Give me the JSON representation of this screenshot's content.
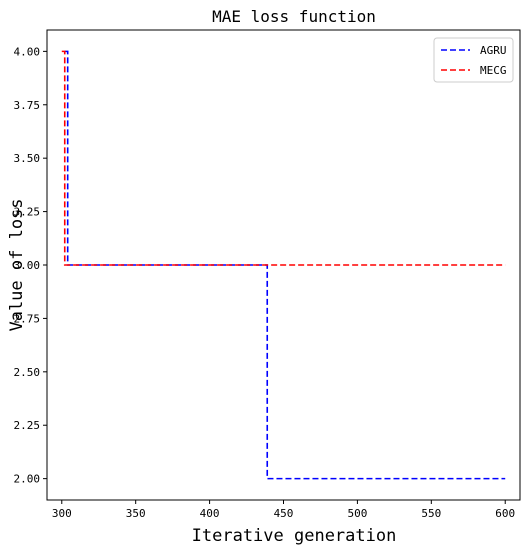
{
  "chart_data": {
    "type": "line",
    "title": "MAE loss function",
    "xlabel": "Iterative generation",
    "ylabel": "Value of loss",
    "xlim": [
      290,
      610
    ],
    "ylim": [
      1.9,
      4.1
    ],
    "xticks": [
      300,
      350,
      400,
      450,
      500,
      550,
      600
    ],
    "yticks": [
      2.0,
      2.25,
      2.5,
      2.75,
      3.0,
      3.25,
      3.5,
      3.75,
      4.0
    ],
    "ytick_labels": [
      "2.00",
      "2.25",
      "2.50",
      "2.75",
      "3.00",
      "3.25",
      "3.50",
      "3.75",
      "4.00"
    ],
    "grid": false,
    "legend_position": "top-right",
    "series": [
      {
        "name": "AGRU",
        "color": "#0000ff",
        "style": "dashed",
        "step": "post",
        "x": [
          302,
          304,
          439,
          600
        ],
        "y": [
          4.0,
          3.0,
          2.0,
          2.0
        ]
      },
      {
        "name": "MECG",
        "color": "#ff0000",
        "style": "dashed",
        "step": "post",
        "x": [
          300,
          302,
          600
        ],
        "y": [
          4.0,
          3.0,
          3.0
        ]
      }
    ]
  }
}
